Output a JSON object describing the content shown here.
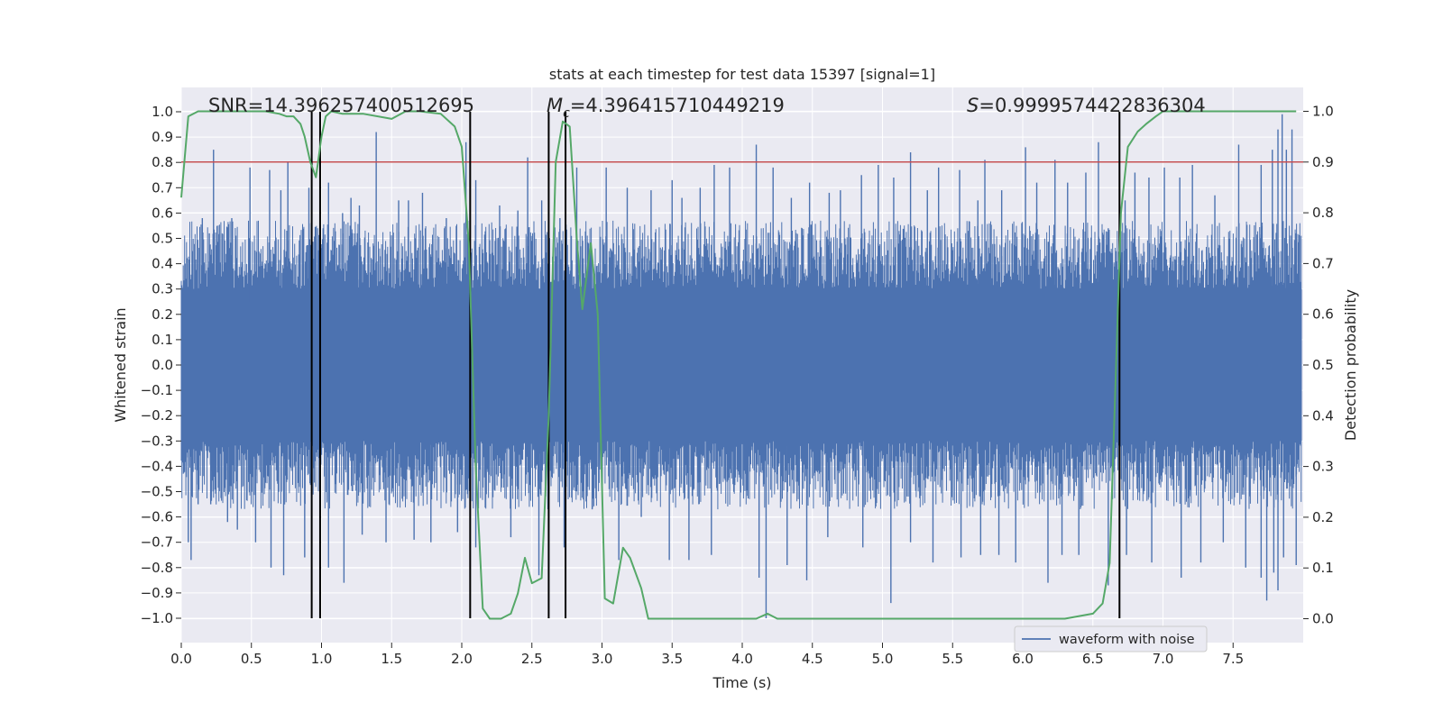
{
  "chart_data": {
    "type": "line",
    "title": "stats at each timestep for test data 15397 [signal=1]",
    "xlabel": "Time (s)",
    "ylabel": "Whitened strain",
    "y2label": "Detection probability",
    "xlim": [
      0.0,
      8.0
    ],
    "ylim": [
      -1.1,
      1.1
    ],
    "y2lim": [
      -0.05,
      1.05
    ],
    "x_ticks": [
      "0.0",
      "0.5",
      "1.0",
      "1.5",
      "2.0",
      "2.5",
      "3.0",
      "3.5",
      "4.0",
      "4.5",
      "5.0",
      "5.5",
      "6.0",
      "6.5",
      "7.0",
      "7.5"
    ],
    "y_ticks": [
      "1.0",
      "0.9",
      "0.8",
      "0.7",
      "0.6",
      "0.5",
      "0.4",
      "0.3",
      "0.2",
      "0.1",
      "0.0",
      "−0.1",
      "−0.2",
      "−0.3",
      "−0.4",
      "−0.5",
      "−0.6",
      "−0.7",
      "−0.8",
      "−0.9",
      "−1.0"
    ],
    "y2_ticks": [
      "1.0",
      "0.9",
      "0.8",
      "0.7",
      "0.6",
      "0.5",
      "0.4",
      "0.3",
      "0.2",
      "0.1",
      "0.0"
    ],
    "legend": {
      "label": "waveform with noise",
      "color": "#4c72b0",
      "placement": "lower-right"
    },
    "annotations": {
      "snr_label": "SNR=14.396257400512695",
      "mc_symbol": "M",
      "mc_subscript": "c",
      "mc_value": "=4.396415710449219",
      "s_symbol": "S",
      "s_value": "=0.9999574422836304"
    },
    "threshold": {
      "y2": 0.9,
      "color": "#c44e52"
    },
    "vertical_markers": [
      0.93,
      0.99,
      2.06,
      2.62,
      2.74,
      6.69
    ],
    "marker_y_range": [
      -1.0,
      1.0
    ],
    "waveform": {
      "name": "waveform with noise",
      "color": "#4c72b0",
      "dense_band": [
        -0.3,
        0.3
      ],
      "t_max": 7.99,
      "spikes_up": [
        [
          0.08,
          0.45
        ],
        [
          0.15,
          0.58
        ],
        [
          0.2,
          0.52
        ],
        [
          0.23,
          0.85
        ],
        [
          0.36,
          0.58
        ],
        [
          0.48,
          0.5
        ],
        [
          0.49,
          0.78
        ],
        [
          0.63,
          0.77
        ],
        [
          0.71,
          0.69
        ],
        [
          0.76,
          0.8
        ],
        [
          0.91,
          0.7
        ],
        [
          1.05,
          0.72
        ],
        [
          1.15,
          0.6
        ],
        [
          1.21,
          0.66
        ],
        [
          1.27,
          0.63
        ],
        [
          1.39,
          0.92
        ],
        [
          1.55,
          0.65
        ],
        [
          1.62,
          0.65
        ],
        [
          1.72,
          0.68
        ],
        [
          1.89,
          0.58
        ],
        [
          2.03,
          0.88
        ],
        [
          2.1,
          0.73
        ],
        [
          2.27,
          0.63
        ],
        [
          2.4,
          0.61
        ],
        [
          2.47,
          0.82
        ],
        [
          2.57,
          0.65
        ],
        [
          2.7,
          0.58
        ],
        [
          2.82,
          0.78
        ],
        [
          3.03,
          0.78
        ],
        [
          3.18,
          0.7
        ],
        [
          3.35,
          0.69
        ],
        [
          3.5,
          0.73
        ],
        [
          3.57,
          0.66
        ],
        [
          3.7,
          0.7
        ],
        [
          3.8,
          0.79
        ],
        [
          3.91,
          0.78
        ],
        [
          4.1,
          0.87
        ],
        [
          4.22,
          0.78
        ],
        [
          4.35,
          0.66
        ],
        [
          4.48,
          0.72
        ],
        [
          4.62,
          0.68
        ],
        [
          4.7,
          0.69
        ],
        [
          4.85,
          0.75
        ],
        [
          4.97,
          0.79
        ],
        [
          5.08,
          0.74
        ],
        [
          5.2,
          0.84
        ],
        [
          5.32,
          0.69
        ],
        [
          5.4,
          0.78
        ],
        [
          5.55,
          0.77
        ],
        [
          5.68,
          0.65
        ],
        [
          5.73,
          0.81
        ],
        [
          5.85,
          0.69
        ],
        [
          6.02,
          0.86
        ],
        [
          6.1,
          0.72
        ],
        [
          6.23,
          0.81
        ],
        [
          6.32,
          0.72
        ],
        [
          6.45,
          0.76
        ],
        [
          6.54,
          0.88
        ],
        [
          6.61,
          0.54
        ],
        [
          6.73,
          0.65
        ],
        [
          6.8,
          0.76
        ],
        [
          6.9,
          0.74
        ],
        [
          7.01,
          0.78
        ],
        [
          7.12,
          0.74
        ],
        [
          7.21,
          0.79
        ],
        [
          7.37,
          0.67
        ],
        [
          7.54,
          0.87
        ],
        [
          7.7,
          0.79
        ],
        [
          7.78,
          0.85
        ],
        [
          7.82,
          0.93
        ],
        [
          7.85,
          0.99
        ],
        [
          7.88,
          0.85
        ],
        [
          7.92,
          0.93
        ],
        [
          7.95,
          0.52
        ]
      ],
      "spikes_down": [
        [
          0.05,
          -0.7
        ],
        [
          0.07,
          -0.77
        ],
        [
          0.12,
          -0.55
        ],
        [
          0.21,
          -0.55
        ],
        [
          0.33,
          -0.62
        ],
        [
          0.4,
          -0.65
        ],
        [
          0.53,
          -0.7
        ],
        [
          0.64,
          -0.8
        ],
        [
          0.73,
          -0.83
        ],
        [
          0.88,
          -0.76
        ],
        [
          1.05,
          -0.8
        ],
        [
          1.16,
          -0.86
        ],
        [
          1.29,
          -0.67
        ],
        [
          1.46,
          -0.7
        ],
        [
          1.66,
          -0.69
        ],
        [
          1.78,
          -0.7
        ],
        [
          1.97,
          -0.66
        ],
        [
          2.1,
          -0.72
        ],
        [
          2.35,
          -0.68
        ],
        [
          2.55,
          -0.83
        ],
        [
          2.62,
          -0.8
        ],
        [
          2.73,
          -0.72
        ],
        [
          2.93,
          -0.57
        ],
        [
          3.12,
          -0.77
        ],
        [
          3.28,
          -0.6
        ],
        [
          3.48,
          -0.77
        ],
        [
          3.62,
          -0.77
        ],
        [
          3.78,
          -0.75
        ],
        [
          4.12,
          -0.84
        ],
        [
          4.17,
          -1.0
        ],
        [
          4.32,
          -0.79
        ],
        [
          4.46,
          -0.85
        ],
        [
          4.61,
          -0.68
        ],
        [
          4.86,
          -0.72
        ],
        [
          5.06,
          -0.94
        ],
        [
          5.2,
          -0.7
        ],
        [
          5.36,
          -0.78
        ],
        [
          5.56,
          -0.76
        ],
        [
          5.7,
          -0.75
        ],
        [
          5.83,
          -0.75
        ],
        [
          5.95,
          -0.78
        ],
        [
          6.18,
          -0.86
        ],
        [
          6.28,
          -0.75
        ],
        [
          6.4,
          -0.75
        ],
        [
          6.61,
          -0.87
        ],
        [
          6.74,
          -0.75
        ],
        [
          6.92,
          -0.78
        ],
        [
          7.13,
          -0.84
        ],
        [
          7.27,
          -0.78
        ],
        [
          7.43,
          -0.7
        ],
        [
          7.59,
          -0.8
        ],
        [
          7.7,
          -0.84
        ],
        [
          7.74,
          -0.93
        ],
        [
          7.79,
          -0.82
        ],
        [
          7.82,
          -0.89
        ],
        [
          7.86,
          -0.76
        ],
        [
          7.95,
          -0.79
        ]
      ]
    },
    "detection_probability": {
      "name": "Detection probability",
      "color": "#55a868",
      "x": [
        0.0,
        0.05,
        0.12,
        0.2,
        0.4,
        0.6,
        0.7,
        0.75,
        0.8,
        0.85,
        0.88,
        0.92,
        0.96,
        1.0,
        1.03,
        1.07,
        1.15,
        1.3,
        1.5,
        1.6,
        1.7,
        1.85,
        1.95,
        2.0,
        2.05,
        2.1,
        2.15,
        2.2,
        2.28,
        2.35,
        2.4,
        2.45,
        2.5,
        2.57,
        2.62,
        2.67,
        2.72,
        2.77,
        2.82,
        2.86,
        2.92,
        2.97,
        3.02,
        3.08,
        3.15,
        3.2,
        3.28,
        3.33,
        3.4,
        3.5,
        3.8,
        4.1,
        4.18,
        4.25,
        4.4,
        5.0,
        5.5,
        6.0,
        6.3,
        6.5,
        6.57,
        6.62,
        6.66,
        6.7,
        6.75,
        6.82,
        6.88,
        6.95,
        7.0,
        7.2,
        7.5,
        7.95
      ],
      "y": [
        0.83,
        0.99,
        1.0,
        1.0,
        1.0,
        1.0,
        0.995,
        0.99,
        0.99,
        0.975,
        0.95,
        0.9,
        0.87,
        0.95,
        0.99,
        1.0,
        0.995,
        0.995,
        0.985,
        1.0,
        1.0,
        0.995,
        0.97,
        0.93,
        0.74,
        0.3,
        0.02,
        0.0,
        0.0,
        0.01,
        0.05,
        0.12,
        0.07,
        0.08,
        0.4,
        0.9,
        0.98,
        0.97,
        0.75,
        0.61,
        0.74,
        0.6,
        0.04,
        0.03,
        0.14,
        0.12,
        0.06,
        0.0,
        0.0,
        0.0,
        0.0,
        0.0,
        0.01,
        0.0,
        0.0,
        0.0,
        0.0,
        0.0,
        0.0,
        0.01,
        0.03,
        0.11,
        0.45,
        0.8,
        0.93,
        0.96,
        0.975,
        0.99,
        1.0,
        1.0,
        1.0,
        1.0
      ]
    }
  }
}
